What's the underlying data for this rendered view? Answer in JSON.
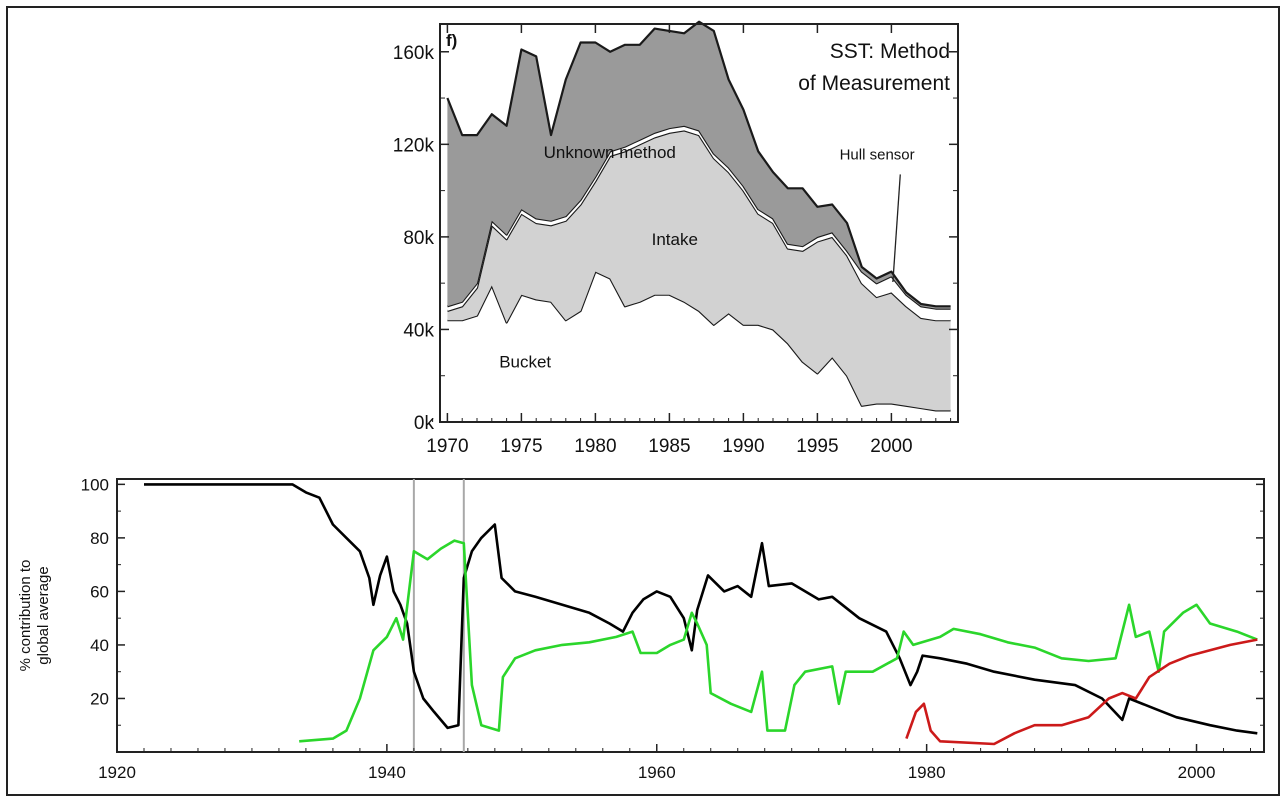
{
  "chart_data": [
    {
      "type": "area",
      "panel_label": "f)",
      "title": "SST: Method of Measurement",
      "title_lines": [
        "SST: Method",
        "of Measurement"
      ],
      "xlabel": "",
      "ylabel": "",
      "xlim": [
        1969.5,
        2004.5
      ],
      "ylim": [
        0,
        172000
      ],
      "xticks": [
        1970,
        1975,
        1980,
        1985,
        1990,
        1995,
        2000
      ],
      "xtick_labels": [
        "1970",
        "1975",
        "1980",
        "1985",
        "1990",
        "1995",
        "2000"
      ],
      "yticks": [
        0,
        40000,
        80000,
        120000,
        160000
      ],
      "ytick_labels": [
        "0k",
        "40k",
        "80k",
        "120k",
        "160k"
      ],
      "grid": false,
      "x": [
        1970,
        1971,
        1972,
        1973,
        1974,
        1975,
        1976,
        1977,
        1978,
        1979,
        1980,
        1981,
        1982,
        1983,
        1984,
        1985,
        1986,
        1987,
        1988,
        1989,
        1990,
        1991,
        1992,
        1993,
        1994,
        1995,
        1996,
        1997,
        1998,
        1999,
        2000,
        2001,
        2002,
        2003,
        2004
      ],
      "series": [
        {
          "name": "Bucket",
          "color": "#ffffff",
          "values": [
            44000,
            44000,
            46000,
            59000,
            43000,
            55000,
            53000,
            52000,
            44000,
            48000,
            65000,
            62000,
            50000,
            52000,
            55000,
            55000,
            52000,
            48000,
            42000,
            47000,
            42000,
            42000,
            40000,
            34000,
            26000,
            21000,
            28000,
            20000,
            7000,
            8000,
            8000,
            7000,
            6000,
            5000,
            5000
          ]
        },
        {
          "name": "Intake",
          "color": "#d2d2d2",
          "values": [
            4000,
            6000,
            12000,
            26000,
            36000,
            35000,
            33000,
            33000,
            43000,
            46000,
            39000,
            53000,
            67000,
            68000,
            68000,
            70000,
            74000,
            76000,
            72000,
            61000,
            58000,
            48000,
            46000,
            41000,
            48000,
            57000,
            52000,
            52000,
            53000,
            46000,
            48000,
            43000,
            39000,
            39000,
            39000
          ]
        },
        {
          "name": "Hull sensor",
          "color": "#ffffff",
          "values": [
            2000,
            2000,
            2000,
            2000,
            2000,
            2000,
            2000,
            2000,
            2000,
            2000,
            2000,
            2000,
            2000,
            2000,
            2000,
            2000,
            2000,
            2000,
            2000,
            2000,
            2000,
            2000,
            2000,
            2000,
            2000,
            2000,
            2000,
            2000,
            5000,
            6000,
            7000,
            5000,
            5000,
            5000,
            5000
          ]
        },
        {
          "name": "Unknown method",
          "color": "#9a9a9a",
          "values": [
            90000,
            72000,
            64000,
            46000,
            47000,
            69000,
            70000,
            37000,
            59000,
            68000,
            58000,
            43000,
            44000,
            41000,
            45000,
            42000,
            40000,
            47000,
            53000,
            38000,
            33000,
            25000,
            20000,
            24000,
            25000,
            13000,
            12000,
            12000,
            2000,
            2000,
            2000,
            1000,
            1000,
            1000,
            1000
          ]
        }
      ]
    },
    {
      "type": "line",
      "xlabel": "",
      "ylabel": "% contribution to global average",
      "ylabel_lines": [
        "% contribution to",
        "global average"
      ],
      "xlim": [
        1920,
        2005
      ],
      "ylim": [
        0,
        102
      ],
      "xticks": [
        1920,
        1940,
        1960,
        1980,
        2000
      ],
      "xtick_labels": [
        "1920",
        "1940",
        "1960",
        "1980",
        "2000"
      ],
      "yticks": [
        20,
        40,
        60,
        80,
        100
      ],
      "ytick_labels": [
        "20",
        "40",
        "60",
        "80",
        "100"
      ],
      "vlines": [
        1942,
        1945.7
      ],
      "grid": false,
      "series": [
        {
          "color": "#000000",
          "points": [
            [
              1922,
              100
            ],
            [
              1928,
              100
            ],
            [
              1933,
              100
            ],
            [
              1934,
              97
            ],
            [
              1935,
              95
            ],
            [
              1936,
              85
            ],
            [
              1937,
              80
            ],
            [
              1938,
              75
            ],
            [
              1938.7,
              65
            ],
            [
              1939,
              55
            ],
            [
              1939.5,
              66
            ],
            [
              1940,
              73
            ],
            [
              1940.5,
              60
            ],
            [
              1941,
              55
            ],
            [
              1941.5,
              48
            ],
            [
              1942,
              30
            ],
            [
              1942.7,
              20
            ],
            [
              1943.5,
              15
            ],
            [
              1944.5,
              9
            ],
            [
              1945.3,
              10
            ],
            [
              1945.7,
              65
            ],
            [
              1946.3,
              75
            ],
            [
              1947,
              80
            ],
            [
              1948,
              85
            ],
            [
              1948.5,
              65
            ],
            [
              1949.5,
              60
            ],
            [
              1951,
              58
            ],
            [
              1953,
              55
            ],
            [
              1955,
              52
            ],
            [
              1956.5,
              48
            ],
            [
              1957.5,
              45
            ],
            [
              1958.2,
              52
            ],
            [
              1959,
              57
            ],
            [
              1960,
              60
            ],
            [
              1961,
              58
            ],
            [
              1962,
              50
            ],
            [
              1962.6,
              38
            ],
            [
              1963,
              53
            ],
            [
              1963.8,
              66
            ],
            [
              1965,
              60
            ],
            [
              1966,
              62
            ],
            [
              1967,
              58
            ],
            [
              1967.8,
              78
            ],
            [
              1968.3,
              62
            ],
            [
              1970,
              63
            ],
            [
              1972,
              57
            ],
            [
              1973,
              58
            ],
            [
              1975,
              50
            ],
            [
              1977,
              45
            ],
            [
              1978,
              35
            ],
            [
              1978.8,
              25
            ],
            [
              1979.3,
              30
            ],
            [
              1979.7,
              36
            ],
            [
              1981,
              35
            ],
            [
              1983,
              33
            ],
            [
              1985,
              30
            ],
            [
              1988,
              27
            ],
            [
              1991,
              25
            ],
            [
              1993,
              20
            ],
            [
              1994.5,
              12
            ],
            [
              1995,
              20
            ],
            [
              1997,
              16
            ],
            [
              1998.5,
              13
            ],
            [
              2001,
              10
            ],
            [
              2003,
              8
            ],
            [
              2004.5,
              7
            ]
          ]
        },
        {
          "color": "#2bd62b",
          "points": [
            [
              1933.5,
              4
            ],
            [
              1936,
              5
            ],
            [
              1937,
              8
            ],
            [
              1938,
              20
            ],
            [
              1939,
              38
            ],
            [
              1940,
              43
            ],
            [
              1940.7,
              50
            ],
            [
              1941.2,
              42
            ],
            [
              1942,
              75
            ],
            [
              1943,
              72
            ],
            [
              1944,
              76
            ],
            [
              1945,
              79
            ],
            [
              1945.7,
              78
            ],
            [
              1946.3,
              25
            ],
            [
              1947,
              10
            ],
            [
              1948.3,
              8
            ],
            [
              1948.6,
              28
            ],
            [
              1949.5,
              35
            ],
            [
              1951,
              38
            ],
            [
              1953,
              40
            ],
            [
              1955,
              41
            ],
            [
              1957,
              43
            ],
            [
              1958.2,
              45
            ],
            [
              1958.8,
              37
            ],
            [
              1960,
              37
            ],
            [
              1961,
              40
            ],
            [
              1962,
              42
            ],
            [
              1962.6,
              52
            ],
            [
              1963,
              48
            ],
            [
              1963.7,
              40
            ],
            [
              1964,
              22
            ],
            [
              1965.5,
              18
            ],
            [
              1967,
              15
            ],
            [
              1967.8,
              30
            ],
            [
              1968.2,
              8
            ],
            [
              1969.5,
              8
            ],
            [
              1970.2,
              25
            ],
            [
              1971,
              30
            ],
            [
              1973,
              32
            ],
            [
              1973.5,
              18
            ],
            [
              1974,
              30
            ],
            [
              1976,
              30
            ],
            [
              1977.8,
              35
            ],
            [
              1978.3,
              45
            ],
            [
              1979,
              40
            ],
            [
              1981,
              43
            ],
            [
              1982,
              46
            ],
            [
              1984,
              44
            ],
            [
              1986,
              41
            ],
            [
              1988,
              39
            ],
            [
              1990,
              35
            ],
            [
              1992,
              34
            ],
            [
              1994,
              35
            ],
            [
              1995,
              55
            ],
            [
              1995.5,
              43
            ],
            [
              1996.5,
              45
            ],
            [
              1997.2,
              30
            ],
            [
              1997.6,
              45
            ],
            [
              1999,
              52
            ],
            [
              2000,
              55
            ],
            [
              2001,
              48
            ],
            [
              2003,
              45
            ],
            [
              2004.5,
              42
            ]
          ]
        },
        {
          "color": "#cc1a1a",
          "points": [
            [
              1978.5,
              5
            ],
            [
              1979.2,
              15
            ],
            [
              1979.8,
              18
            ],
            [
              1980.3,
              8
            ],
            [
              1981,
              4
            ],
            [
              1985,
              3
            ],
            [
              1986.5,
              7
            ],
            [
              1988,
              10
            ],
            [
              1990,
              10
            ],
            [
              1992,
              13
            ],
            [
              1993.5,
              20
            ],
            [
              1994.5,
              22
            ],
            [
              1995.5,
              20
            ],
            [
              1996.5,
              28
            ],
            [
              1998,
              33
            ],
            [
              1999.5,
              36
            ],
            [
              2001,
              38
            ],
            [
              2002.5,
              40
            ],
            [
              2004.5,
              42
            ]
          ]
        }
      ]
    }
  ]
}
